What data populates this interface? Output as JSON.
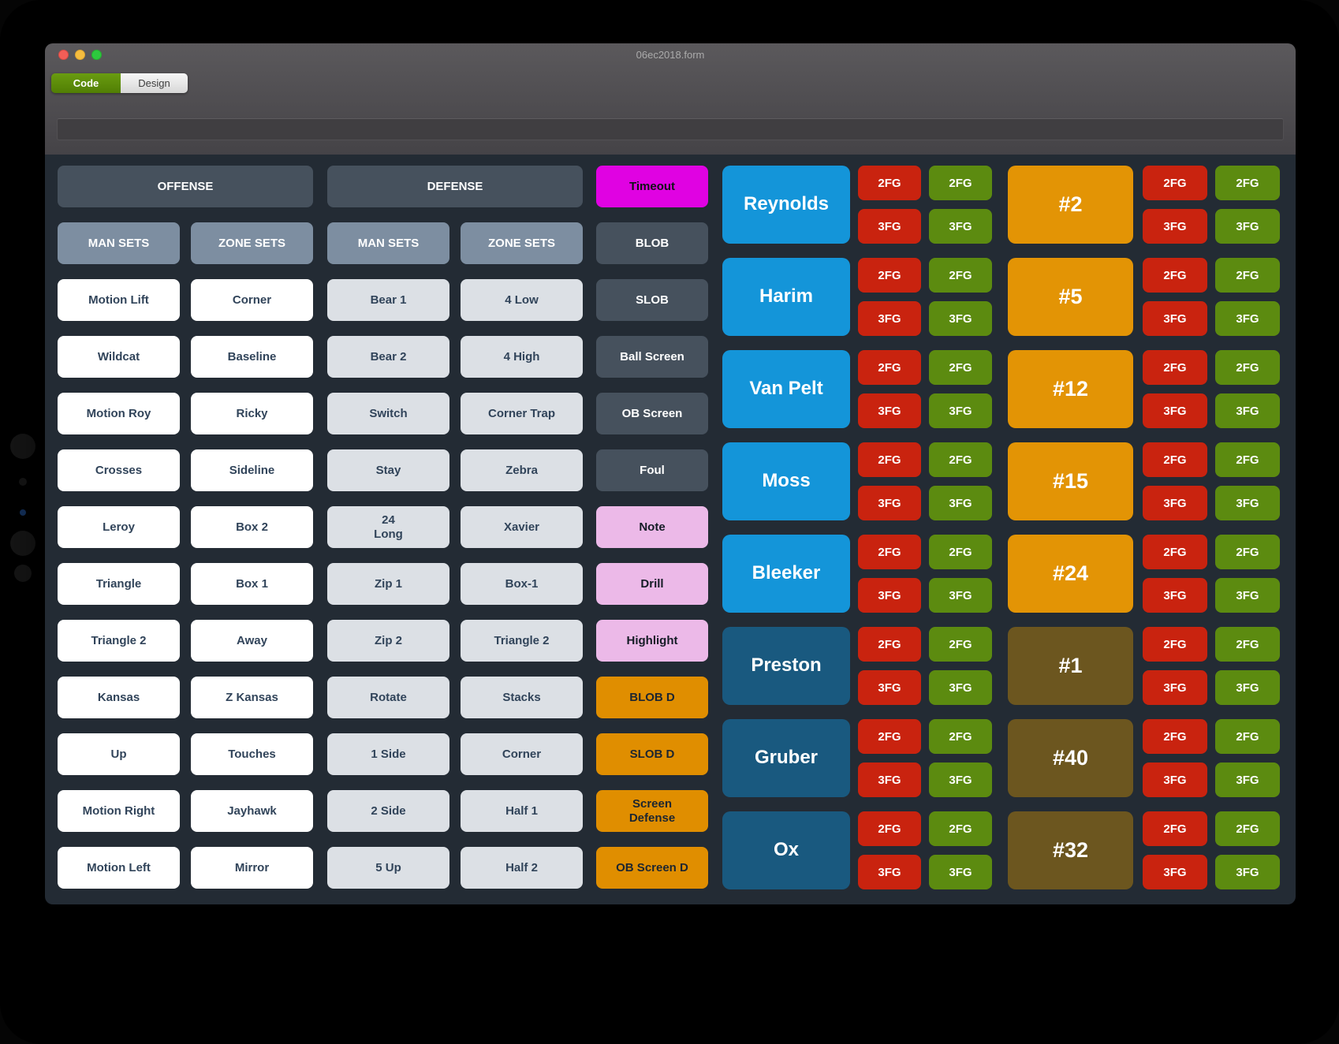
{
  "window_title": "06ec2018.form",
  "tabs": [
    {
      "label": "Code",
      "active": true
    },
    {
      "label": "Design",
      "active": false
    }
  ],
  "offense": {
    "header": "OFFENSE",
    "subheaders": [
      "MAN SETS",
      "ZONE SETS"
    ],
    "man_sets": [
      "Motion Lift",
      "Wildcat",
      "Motion Roy",
      "Crosses",
      "Leroy",
      "Triangle",
      "Triangle 2",
      "Kansas",
      "Up",
      "Motion Right",
      "Motion Left"
    ],
    "zone_sets": [
      "Corner",
      "Baseline",
      "Ricky",
      "Sideline",
      "Box 2",
      "Box 1",
      "Away",
      "Z Kansas",
      "Touches",
      "Jayhawk",
      "Mirror"
    ]
  },
  "defense": {
    "header": "DEFENSE",
    "subheaders": [
      "MAN SETS",
      "ZONE SETS"
    ],
    "man_sets": [
      "Bear 1",
      "Bear 2",
      "Switch",
      "Stay",
      "24\nLong",
      "Zip 1",
      "Zip 2",
      "Rotate",
      "1 Side",
      "2 Side",
      "5 Up"
    ],
    "zone_sets": [
      "4 Low",
      "4 High",
      "Corner Trap",
      "Zebra",
      "Xavier",
      "Box-1",
      "Triangle 2",
      "Stacks",
      "Corner",
      "Half 1",
      "Half 2"
    ]
  },
  "events": [
    {
      "label": "Timeout",
      "style": "magenta"
    },
    {
      "label": "BLOB",
      "style": "dark"
    },
    {
      "label": "SLOB",
      "style": "dark"
    },
    {
      "label": "Ball Screen",
      "style": "dark"
    },
    {
      "label": "OB Screen",
      "style": "dark"
    },
    {
      "label": "Foul",
      "style": "dark"
    },
    {
      "label": "Note",
      "style": "pink"
    },
    {
      "label": "Drill",
      "style": "pink"
    },
    {
      "label": "Highlight",
      "style": "pink"
    },
    {
      "label": "BLOB D",
      "style": "orange"
    },
    {
      "label": "SLOB D",
      "style": "orange"
    },
    {
      "label": "Screen\nDefense",
      "style": "orange"
    },
    {
      "label": "OB Screen D",
      "style": "orange"
    }
  ],
  "players": [
    {
      "name": "Reynolds",
      "jersey": "#2",
      "name_tone": "bright",
      "jersey_tone": "orange"
    },
    {
      "name": "Harim",
      "jersey": "#5",
      "name_tone": "bright",
      "jersey_tone": "orange"
    },
    {
      "name": "Van Pelt",
      "jersey": "#12",
      "name_tone": "bright",
      "jersey_tone": "orange"
    },
    {
      "name": "Moss",
      "jersey": "#15",
      "name_tone": "bright",
      "jersey_tone": "orange"
    },
    {
      "name": "Bleeker",
      "jersey": "#24",
      "name_tone": "bright",
      "jersey_tone": "orange"
    },
    {
      "name": "Preston",
      "jersey": "#1",
      "name_tone": "dark",
      "jersey_tone": "brown"
    },
    {
      "name": "Gruber",
      "jersey": "#40",
      "name_tone": "dark",
      "jersey_tone": "brown"
    },
    {
      "name": "Ox",
      "jersey": "#32",
      "name_tone": "dark",
      "jersey_tone": "brown"
    }
  ],
  "fg": {
    "labels": [
      "2FG",
      "3FG"
    ]
  },
  "colors": {
    "content_background": "#232b34",
    "slate_button": "#46515d",
    "subheader_button": "#7d8ea1",
    "white_button": "#ffffff",
    "gray_button": "#dce0e5",
    "magenta_button": "#e002e2",
    "pink_button": "#ecb9e8",
    "orange_button": "#e08e00",
    "player_bright_blue": "#1495d9",
    "player_dark_blue": "#19597f",
    "fg_red": "#c9230f",
    "fg_green": "#5c8b10",
    "jersey_orange": "#e39405",
    "jersey_brown": "#6c561f",
    "tab_active_green": "#5a8c07"
  }
}
